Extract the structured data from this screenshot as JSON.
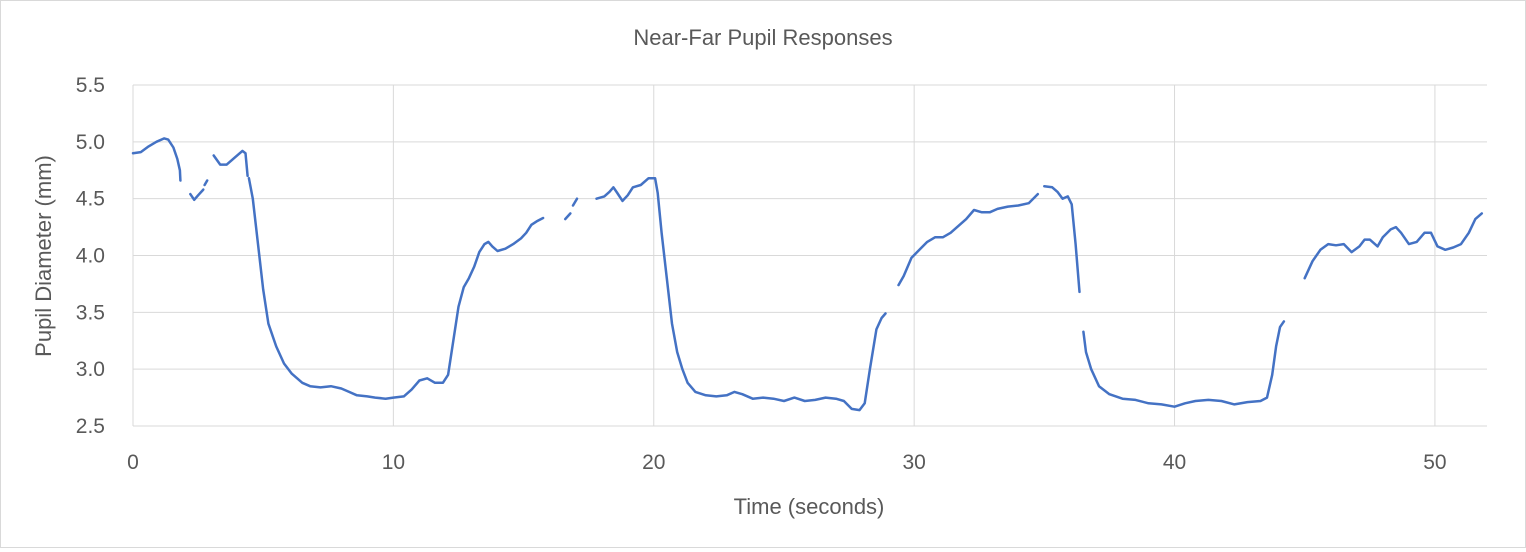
{
  "chart_data": {
    "type": "line",
    "title": "Near-Far Pupil Responses",
    "xlabel": "Time (seconds)",
    "ylabel": "Pupil Diameter (mm)",
    "xlim": [
      0,
      52
    ],
    "ylim": [
      2.5,
      5.5
    ],
    "x_ticks": [
      0,
      10,
      20,
      30,
      40,
      50
    ],
    "y_ticks": [
      2.5,
      3.0,
      3.5,
      4.0,
      4.5,
      5.0,
      5.5
    ],
    "x_tick_labels": [
      "0",
      "10",
      "20",
      "30",
      "40",
      "50"
    ],
    "y_tick_labels": [
      "2.5",
      "3.0",
      "3.5",
      "4.0",
      "4.5",
      "5.0",
      "5.5"
    ],
    "grid": true,
    "legend": "none",
    "line_color": "#4472c4",
    "grid_color": "#d9d9d9",
    "segments": [
      [
        [
          0,
          4.9
        ],
        [
          0.3,
          4.91
        ],
        [
          0.6,
          4.96
        ],
        [
          0.9,
          5.0
        ],
        [
          1.2,
          5.03
        ],
        [
          1.35,
          5.02
        ],
        [
          1.55,
          4.95
        ],
        [
          1.7,
          4.85
        ],
        [
          1.8,
          4.75
        ],
        [
          1.82,
          4.66
        ]
      ],
      [
        [
          2.2,
          4.54
        ],
        [
          2.35,
          4.49
        ],
        [
          2.5,
          4.53
        ],
        [
          2.7,
          4.58
        ]
      ],
      [
        [
          2.75,
          4.62
        ],
        [
          2.85,
          4.66
        ]
      ],
      [
        [
          3.1,
          4.88
        ],
        [
          3.35,
          4.8
        ],
        [
          3.6,
          4.8
        ],
        [
          3.9,
          4.86
        ],
        [
          4.2,
          4.92
        ],
        [
          4.32,
          4.9
        ],
        [
          4.4,
          4.7
        ]
      ],
      [
        [
          4.45,
          4.68
        ],
        [
          4.6,
          4.5
        ],
        [
          4.8,
          4.1
        ],
        [
          5.0,
          3.7
        ],
        [
          5.2,
          3.4
        ],
        [
          5.5,
          3.2
        ],
        [
          5.8,
          3.05
        ],
        [
          6.1,
          2.96
        ],
        [
          6.5,
          2.88
        ],
        [
          6.8,
          2.85
        ],
        [
          7.2,
          2.84
        ],
        [
          7.6,
          2.85
        ],
        [
          8.0,
          2.83
        ],
        [
          8.3,
          2.8
        ],
        [
          8.6,
          2.77
        ],
        [
          9.0,
          2.76
        ],
        [
          9.3,
          2.75
        ],
        [
          9.7,
          2.74
        ],
        [
          10.0,
          2.75
        ],
        [
          10.4,
          2.76
        ],
        [
          10.7,
          2.82
        ],
        [
          11.0,
          2.9
        ],
        [
          11.3,
          2.92
        ],
        [
          11.6,
          2.88
        ],
        [
          11.9,
          2.88
        ],
        [
          12.1,
          2.95
        ],
        [
          12.3,
          3.25
        ],
        [
          12.5,
          3.55
        ],
        [
          12.7,
          3.72
        ],
        [
          12.9,
          3.8
        ],
        [
          13.1,
          3.9
        ],
        [
          13.3,
          4.03
        ],
        [
          13.5,
          4.1
        ],
        [
          13.65,
          4.12
        ],
        [
          13.8,
          4.08
        ],
        [
          14.0,
          4.04
        ],
        [
          14.3,
          4.06
        ],
        [
          14.6,
          4.1
        ],
        [
          14.9,
          4.15
        ],
        [
          15.1,
          4.2
        ],
        [
          15.3,
          4.27
        ],
        [
          15.5,
          4.3
        ],
        [
          15.75,
          4.33
        ]
      ],
      [
        [
          16.6,
          4.32
        ],
        [
          16.8,
          4.37
        ]
      ],
      [
        [
          16.9,
          4.44
        ],
        [
          17.05,
          4.5
        ]
      ],
      [
        [
          17.8,
          4.5
        ],
        [
          18.1,
          4.52
        ],
        [
          18.3,
          4.56
        ],
        [
          18.45,
          4.6
        ],
        [
          18.6,
          4.55
        ],
        [
          18.8,
          4.48
        ],
        [
          19.0,
          4.53
        ],
        [
          19.2,
          4.6
        ],
        [
          19.5,
          4.62
        ],
        [
          19.8,
          4.68
        ],
        [
          20.05,
          4.68
        ],
        [
          20.15,
          4.55
        ],
        [
          20.3,
          4.2
        ],
        [
          20.5,
          3.8
        ],
        [
          20.7,
          3.4
        ],
        [
          20.9,
          3.15
        ],
        [
          21.1,
          3.0
        ],
        [
          21.3,
          2.88
        ],
        [
          21.6,
          2.8
        ],
        [
          22.0,
          2.77
        ],
        [
          22.4,
          2.76
        ],
        [
          22.8,
          2.77
        ],
        [
          23.1,
          2.8
        ],
        [
          23.4,
          2.78
        ],
        [
          23.8,
          2.74
        ],
        [
          24.2,
          2.75
        ],
        [
          24.6,
          2.74
        ],
        [
          25.0,
          2.72
        ],
        [
          25.4,
          2.75
        ],
        [
          25.8,
          2.72
        ],
        [
          26.2,
          2.73
        ],
        [
          26.6,
          2.75
        ],
        [
          27.0,
          2.74
        ],
        [
          27.3,
          2.72
        ],
        [
          27.6,
          2.65
        ],
        [
          27.9,
          2.64
        ],
        [
          28.1,
          2.7
        ],
        [
          28.3,
          3.0
        ],
        [
          28.55,
          3.35
        ],
        [
          28.75,
          3.45
        ],
        [
          28.9,
          3.49
        ]
      ],
      [
        [
          29.4,
          3.74
        ],
        [
          29.6,
          3.82
        ],
        [
          29.9,
          3.98
        ],
        [
          30.2,
          4.05
        ],
        [
          30.5,
          4.12
        ],
        [
          30.8,
          4.16
        ],
        [
          31.1,
          4.16
        ],
        [
          31.4,
          4.2
        ],
        [
          31.7,
          4.26
        ],
        [
          32.0,
          4.32
        ],
        [
          32.3,
          4.4
        ],
        [
          32.6,
          4.38
        ],
        [
          32.9,
          4.38
        ],
        [
          33.2,
          4.41
        ],
        [
          33.6,
          4.43
        ],
        [
          34.0,
          4.44
        ],
        [
          34.4,
          4.46
        ],
        [
          34.75,
          4.54
        ]
      ],
      [
        [
          35.0,
          4.61
        ],
        [
          35.3,
          4.6
        ],
        [
          35.5,
          4.56
        ],
        [
          35.7,
          4.5
        ],
        [
          35.9,
          4.52
        ],
        [
          36.05,
          4.45
        ],
        [
          36.2,
          4.1
        ],
        [
          36.35,
          3.68
        ]
      ],
      [
        [
          36.5,
          3.33
        ],
        [
          36.6,
          3.15
        ],
        [
          36.8,
          3.0
        ],
        [
          37.1,
          2.85
        ],
        [
          37.5,
          2.78
        ],
        [
          38.0,
          2.74
        ],
        [
          38.5,
          2.73
        ],
        [
          39.0,
          2.7
        ],
        [
          39.5,
          2.69
        ],
        [
          40.0,
          2.67
        ],
        [
          40.4,
          2.7
        ],
        [
          40.8,
          2.72
        ],
        [
          41.3,
          2.73
        ],
        [
          41.8,
          2.72
        ],
        [
          42.3,
          2.69
        ],
        [
          42.8,
          2.71
        ],
        [
          43.3,
          2.72
        ],
        [
          43.55,
          2.75
        ],
        [
          43.75,
          2.95
        ],
        [
          43.9,
          3.2
        ],
        [
          44.05,
          3.37
        ],
        [
          44.2,
          3.42
        ]
      ],
      [
        [
          45.0,
          3.8
        ],
        [
          45.3,
          3.95
        ],
        [
          45.6,
          4.05
        ],
        [
          45.9,
          4.1
        ],
        [
          46.2,
          4.09
        ],
        [
          46.5,
          4.1
        ],
        [
          46.8,
          4.03
        ],
        [
          47.1,
          4.08
        ],
        [
          47.3,
          4.14
        ],
        [
          47.5,
          4.14
        ],
        [
          47.8,
          4.08
        ],
        [
          48.0,
          4.16
        ],
        [
          48.3,
          4.23
        ],
        [
          48.5,
          4.25
        ],
        [
          48.7,
          4.2
        ],
        [
          49.0,
          4.1
        ],
        [
          49.3,
          4.12
        ],
        [
          49.6,
          4.2
        ],
        [
          49.85,
          4.2
        ],
        [
          50.1,
          4.08
        ],
        [
          50.4,
          4.05
        ],
        [
          50.7,
          4.07
        ],
        [
          51.0,
          4.1
        ],
        [
          51.3,
          4.2
        ],
        [
          51.55,
          4.32
        ],
        [
          51.8,
          4.37
        ]
      ]
    ]
  }
}
